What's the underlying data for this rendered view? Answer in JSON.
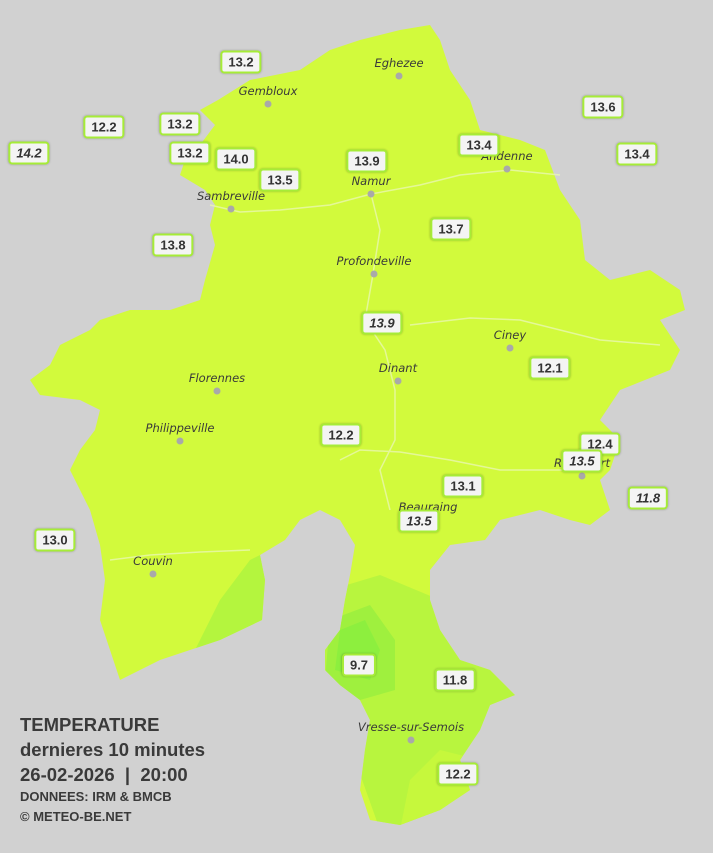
{
  "towns": [
    "Eghezee",
    "Gembloux",
    "Andenne",
    "Namur",
    "Sambreville",
    "Profondeville",
    "Ciney",
    "Dinant",
    "Florennes",
    "Philippeville",
    "Rochefort",
    "Beauraing",
    "Couvin",
    "Vresse-sur-Semois"
  ],
  "stations": [
    {
      "value": "13.2",
      "italic": false
    },
    {
      "value": "12.2",
      "italic": false
    },
    {
      "value": "13.2",
      "italic": false
    },
    {
      "value": "14.2",
      "italic": true
    },
    {
      "value": "13.2",
      "italic": false
    },
    {
      "value": "14.0",
      "italic": false
    },
    {
      "value": "13.5",
      "italic": false
    },
    {
      "value": "13.9",
      "italic": false
    },
    {
      "value": "13.4",
      "italic": false
    },
    {
      "value": "13.6",
      "italic": false
    },
    {
      "value": "13.4",
      "italic": false
    },
    {
      "value": "13.8",
      "italic": false
    },
    {
      "value": "13.7",
      "italic": false
    },
    {
      "value": "13.9",
      "italic": true
    },
    {
      "value": "12.1",
      "italic": false
    },
    {
      "value": "12.2",
      "italic": false
    },
    {
      "value": "12.4",
      "italic": false
    },
    {
      "value": "13.5",
      "italic": true
    },
    {
      "value": "11.8",
      "italic": true
    },
    {
      "value": "13.1",
      "italic": false
    },
    {
      "value": "13.5",
      "italic": true
    },
    {
      "value": "13.0",
      "italic": false
    },
    {
      "value": "9.7",
      "italic": false
    },
    {
      "value": "11.8",
      "italic": false
    },
    {
      "value": "12.2",
      "italic": false
    }
  ],
  "legend": {
    "title": "TEMPERATURE",
    "subtitle": "dernieres 10 minutes",
    "datetime": "26-02-2026  |  20:00",
    "source": "DONNEES: IRM & BMCB",
    "copyright": "© METEO-BE.NET"
  }
}
